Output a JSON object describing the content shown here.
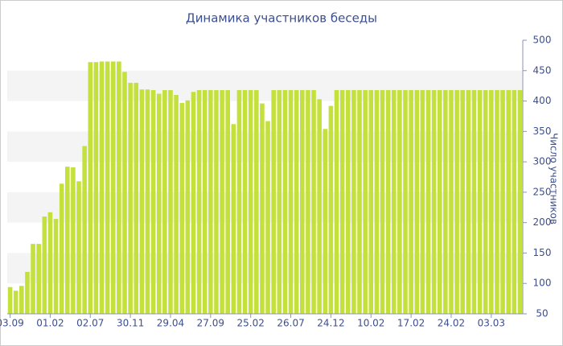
{
  "chart_data": {
    "type": "bar",
    "title": "Динамика участников беседы",
    "y_label": "Число участников",
    "categories": [
      "03.09",
      null,
      null,
      null,
      null,
      null,
      null,
      "01.02",
      null,
      null,
      null,
      null,
      null,
      null,
      "02.07",
      null,
      null,
      null,
      null,
      null,
      null,
      "30.11",
      null,
      null,
      null,
      null,
      null,
      null,
      "29.04",
      null,
      null,
      null,
      null,
      null,
      null,
      "27.09",
      null,
      null,
      null,
      null,
      null,
      null,
      "25.02",
      null,
      null,
      null,
      null,
      null,
      null,
      "26.07",
      null,
      null,
      null,
      null,
      null,
      null,
      "24.12",
      null,
      null,
      null,
      null,
      null,
      null,
      "10.02",
      null,
      null,
      null,
      null,
      null,
      null,
      "17.02",
      null,
      null,
      null,
      null,
      null,
      null,
      "24.02",
      null,
      null,
      null,
      null,
      null,
      null,
      "03.03",
      null,
      null,
      null,
      null,
      null
    ],
    "values": [
      94,
      88,
      96,
      119,
      165,
      165,
      210,
      217,
      206,
      264,
      292,
      291,
      268,
      326,
      464,
      464,
      465,
      465,
      465,
      465,
      448,
      430,
      430,
      419,
      419,
      418,
      412,
      418,
      418,
      410,
      397,
      401,
      415,
      418,
      418,
      418,
      418,
      418,
      418,
      362,
      418,
      418,
      418,
      418,
      396,
      367,
      418,
      418,
      418,
      418,
      418,
      418,
      418,
      418,
      403,
      354,
      392,
      418,
      418,
      418,
      418,
      418,
      418,
      418,
      418,
      418,
      418,
      418,
      418,
      418,
      418,
      418,
      418,
      418,
      418,
      418,
      418,
      418,
      418,
      418,
      418,
      418,
      418,
      418,
      418,
      418,
      418,
      418,
      418,
      418
    ],
    "color": "#c3e03c",
    "ylim": [
      50,
      500
    ],
    "yticks": [
      50,
      100,
      150,
      200,
      250,
      300,
      350,
      400,
      450,
      500
    ],
    "grid": true,
    "y_axis_side": "right"
  }
}
